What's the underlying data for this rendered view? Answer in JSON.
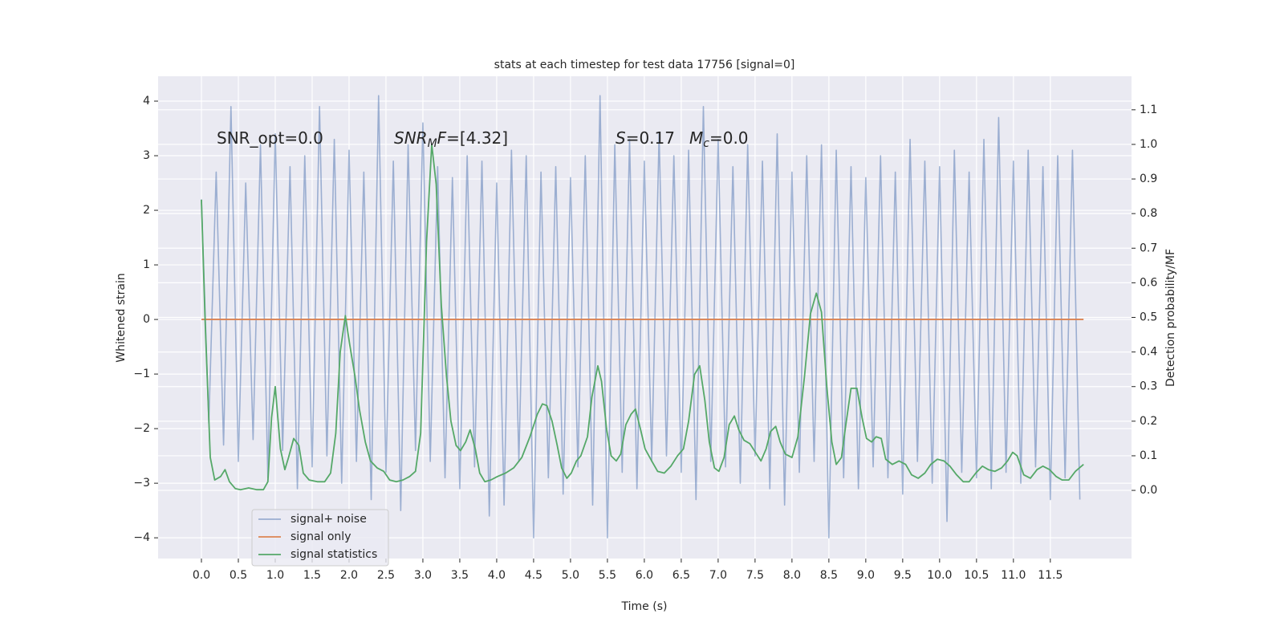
{
  "chart_data": {
    "type": "line",
    "title": "stats at each timestep for test data 17756 [signal=0]",
    "x_label": "Time (s)",
    "y_label": "Whitened strain",
    "y2_label": "Detection probability/MF",
    "grid": true,
    "legend": "lower left",
    "xlim": [
      -0.587,
      12.6
    ],
    "ylim": [
      -4.38,
      4.456
    ],
    "y2lim": [
      -0.197,
      1.197
    ],
    "xticks": [
      {
        "value": 0,
        "label": "0.0"
      },
      0.5,
      {
        "value": 1,
        "label": "1.0"
      },
      1.5,
      {
        "value": 2,
        "label": "2.0"
      },
      2.5,
      {
        "value": 3,
        "label": "3.0"
      },
      3.5,
      {
        "value": 4,
        "label": "4.0"
      },
      4.5,
      {
        "value": 5,
        "label": "5.0"
      },
      5.5,
      {
        "value": 6,
        "label": "6.0"
      },
      6.5,
      {
        "value": 7,
        "label": "7.0"
      },
      7.5,
      {
        "value": 8,
        "label": "8.0"
      },
      8.5,
      {
        "value": 9,
        "label": "9.0"
      },
      9.5,
      {
        "value": 10,
        "label": "10.0"
      },
      10.5,
      {
        "value": 11,
        "label": "11.0"
      },
      11.5
    ],
    "yticks": [
      {
        "value": -4,
        "label": "−4"
      },
      {
        "value": -3,
        "label": "−3"
      },
      {
        "value": -2,
        "label": "−2"
      },
      {
        "value": -1,
        "label": "−1"
      },
      0,
      1,
      2,
      3,
      4
    ],
    "y2ticks": [
      {
        "value": 0,
        "label": "0.0"
      },
      0.1,
      0.2,
      0.3,
      0.4,
      0.5,
      0.6,
      0.7,
      0.8,
      0.9,
      {
        "value": 1,
        "label": "1.0"
      },
      1.1
    ],
    "annotations": [
      [
        {
          "text": "SNR_opt=0.0"
        }
      ],
      [
        {
          "text": "SNR",
          "style": "italic"
        },
        {
          "text": "M",
          "style": "italic-sub"
        },
        {
          "text": "F",
          "style": "italic"
        },
        {
          "text": "=[4.32]"
        }
      ],
      [
        {
          "text": "S",
          "style": "italic"
        },
        {
          "text": "=0.17"
        }
      ],
      [
        {
          "text": "M",
          "style": "italic"
        },
        {
          "text": "c",
          "style": "italic-sub"
        },
        {
          "text": "=0.0"
        }
      ]
    ],
    "series": [
      {
        "name": "signal+ noise",
        "color": "#4c72b0",
        "opacity": 0.5,
        "x": [
          0,
          0.1,
          0.2,
          0.3,
          0.4,
          0.5,
          0.6,
          0.7,
          0.8,
          0.9,
          1,
          1.1,
          1.2,
          1.3,
          1.4,
          1.5,
          1.6,
          1.7,
          1.8,
          1.9,
          2,
          2.1,
          2.2,
          2.3,
          2.4,
          2.5,
          2.6,
          2.7,
          2.8,
          2.9,
          3,
          3.1,
          3.2,
          3.3,
          3.4,
          3.5,
          3.6,
          3.7,
          3.8,
          3.9,
          4,
          4.1,
          4.2,
          4.3,
          4.4,
          4.5,
          4.6,
          4.7,
          4.8,
          4.9,
          5,
          5.1,
          5.2,
          5.3,
          5.4,
          5.5,
          5.6,
          5.7,
          5.8,
          5.9,
          6,
          6.1,
          6.2,
          6.3,
          6.4,
          6.5,
          6.6,
          6.7,
          6.8,
          6.9,
          7,
          7.1,
          7.2,
          7.3,
          7.4,
          7.5,
          7.6,
          7.7,
          7.8,
          7.9,
          8,
          8.1,
          8.2,
          8.3,
          8.4,
          8.5,
          8.6,
          8.7,
          8.8,
          8.9,
          9,
          9.1,
          9.2,
          9.3,
          9.4,
          9.5,
          9.6,
          9.7,
          9.8,
          9.9,
          10,
          10.1,
          10.2,
          10.3,
          10.4,
          10.5,
          10.6,
          10.7,
          10.8,
          10.9,
          11,
          11.1,
          11.2,
          11.3,
          11.4,
          11.5,
          11.6,
          11.7,
          11.8,
          11.9
        ],
        "values": [
          2.2,
          -1.9,
          2.7,
          -2.3,
          3.9,
          -2.6,
          2.5,
          -2.2,
          3.2,
          -2.9,
          3.4,
          -2.4,
          2.8,
          -3.1,
          3.0,
          -2.7,
          3.9,
          -2.5,
          3.3,
          -3.0,
          3.1,
          -2.6,
          2.7,
          -3.3,
          4.1,
          -2.8,
          2.9,
          -3.5,
          3.2,
          -2.4,
          3.6,
          -2.6,
          2.8,
          -2.9,
          2.6,
          -3.1,
          3.0,
          -2.7,
          2.9,
          -3.6,
          2.5,
          -3.4,
          3.1,
          -2.6,
          3.0,
          -4.0,
          2.7,
          -2.9,
          2.8,
          -3.2,
          2.6,
          -2.7,
          3.0,
          -3.4,
          4.1,
          -4.0,
          3.2,
          -2.8,
          3.3,
          -3.1,
          2.9,
          -2.6,
          3.4,
          -2.5,
          3.0,
          -2.8,
          3.1,
          -3.3,
          3.9,
          -2.6,
          3.3,
          -2.7,
          2.8,
          -3.0,
          3.2,
          -2.5,
          2.9,
          -3.1,
          3.4,
          -3.4,
          2.7,
          -2.8,
          3.0,
          -2.6,
          3.2,
          -4.0,
          3.1,
          -2.9,
          2.8,
          -3.1,
          2.6,
          -2.7,
          3.0,
          -2.9,
          2.7,
          -3.2,
          3.3,
          -2.6,
          2.9,
          -3.0,
          2.8,
          -3.7,
          3.1,
          -2.8,
          2.7,
          -2.9,
          3.3,
          -3.1,
          3.7,
          -2.8,
          2.9,
          -3.0,
          3.1,
          -2.7,
          2.8,
          -3.3,
          3.0,
          -2.9,
          3.1,
          -3.3
        ]
      },
      {
        "name": "signal only",
        "color": "#dd8452",
        "x": [
          0,
          11.95
        ],
        "values": [
          0,
          0
        ]
      },
      {
        "name": "signal statistics",
        "color": "#55a868",
        "axis": "y2",
        "x": [
          0,
          0.05,
          0.12,
          0.18,
          0.26,
          0.32,
          0.38,
          0.46,
          0.53,
          0.64,
          0.75,
          0.84,
          0.9,
          0.95,
          1,
          1.07,
          1.13,
          1.18,
          1.25,
          1.32,
          1.38,
          1.46,
          1.57,
          1.67,
          1.75,
          1.82,
          1.88,
          1.95,
          2.01,
          2.08,
          2.14,
          2.22,
          2.29,
          2.38,
          2.47,
          2.55,
          2.64,
          2.73,
          2.82,
          2.9,
          2.97,
          3.05,
          3.12,
          3.18,
          3.25,
          3.32,
          3.38,
          3.45,
          3.51,
          3.58,
          3.64,
          3.71,
          3.77,
          3.84,
          3.92,
          4.01,
          4.12,
          4.23,
          4.34,
          4.45,
          4.55,
          4.62,
          4.68,
          4.75,
          4.82,
          4.88,
          4.95,
          5.01,
          5.08,
          5.14,
          5.23,
          5.29,
          5.37,
          5.42,
          5.49,
          5.55,
          5.62,
          5.68,
          5.75,
          5.82,
          5.88,
          5.95,
          6.01,
          6.1,
          6.18,
          6.27,
          6.36,
          6.45,
          6.53,
          6.6,
          6.68,
          6.75,
          6.82,
          6.88,
          6.95,
          7.01,
          7.08,
          7.15,
          7.22,
          7.28,
          7.35,
          7.43,
          7.52,
          7.58,
          7.65,
          7.71,
          7.78,
          7.84,
          7.91,
          8,
          8.08,
          8.17,
          8.25,
          8.33,
          8.4,
          8.47,
          8.54,
          8.6,
          8.67,
          8.73,
          8.8,
          8.88,
          8.95,
          9.01,
          9.08,
          9.14,
          9.21,
          9.27,
          9.36,
          9.45,
          9.54,
          9.62,
          9.71,
          9.8,
          9.88,
          9.97,
          10.06,
          10.14,
          10.23,
          10.32,
          10.4,
          10.49,
          10.58,
          10.66,
          10.75,
          10.84,
          10.92,
          10.99,
          11.05,
          11.14,
          11.23,
          11.32,
          11.4,
          11.49,
          11.58,
          11.66,
          11.75,
          11.84,
          11.95
        ],
        "values": [
          0.84,
          0.49,
          0.095,
          0.03,
          0.04,
          0.06,
          0.025,
          0.005,
          0.002,
          0.007,
          0.002,
          0.002,
          0.025,
          0.21,
          0.3,
          0.12,
          0.06,
          0.095,
          0.15,
          0.13,
          0.05,
          0.03,
          0.025,
          0.025,
          0.05,
          0.165,
          0.4,
          0.505,
          0.42,
          0.33,
          0.235,
          0.14,
          0.085,
          0.065,
          0.055,
          0.03,
          0.025,
          0.03,
          0.04,
          0.055,
          0.165,
          0.72,
          1.0,
          0.885,
          0.535,
          0.33,
          0.2,
          0.13,
          0.115,
          0.14,
          0.175,
          0.12,
          0.05,
          0.025,
          0.03,
          0.04,
          0.05,
          0.065,
          0.095,
          0.155,
          0.22,
          0.25,
          0.245,
          0.2,
          0.13,
          0.065,
          0.035,
          0.05,
          0.085,
          0.1,
          0.155,
          0.27,
          0.36,
          0.315,
          0.175,
          0.1,
          0.085,
          0.105,
          0.19,
          0.22,
          0.235,
          0.175,
          0.12,
          0.085,
          0.055,
          0.05,
          0.07,
          0.1,
          0.12,
          0.2,
          0.335,
          0.36,
          0.26,
          0.14,
          0.065,
          0.055,
          0.095,
          0.19,
          0.215,
          0.175,
          0.145,
          0.135,
          0.105,
          0.085,
          0.12,
          0.17,
          0.185,
          0.14,
          0.105,
          0.095,
          0.155,
          0.33,
          0.51,
          0.57,
          0.515,
          0.305,
          0.14,
          0.075,
          0.095,
          0.19,
          0.295,
          0.295,
          0.21,
          0.15,
          0.14,
          0.155,
          0.15,
          0.09,
          0.075,
          0.085,
          0.075,
          0.045,
          0.035,
          0.05,
          0.075,
          0.09,
          0.085,
          0.07,
          0.045,
          0.025,
          0.025,
          0.05,
          0.07,
          0.06,
          0.055,
          0.065,
          0.085,
          0.11,
          0.1,
          0.045,
          0.035,
          0.06,
          0.07,
          0.06,
          0.04,
          0.03,
          0.03,
          0.055,
          0.075
        ]
      }
    ]
  }
}
